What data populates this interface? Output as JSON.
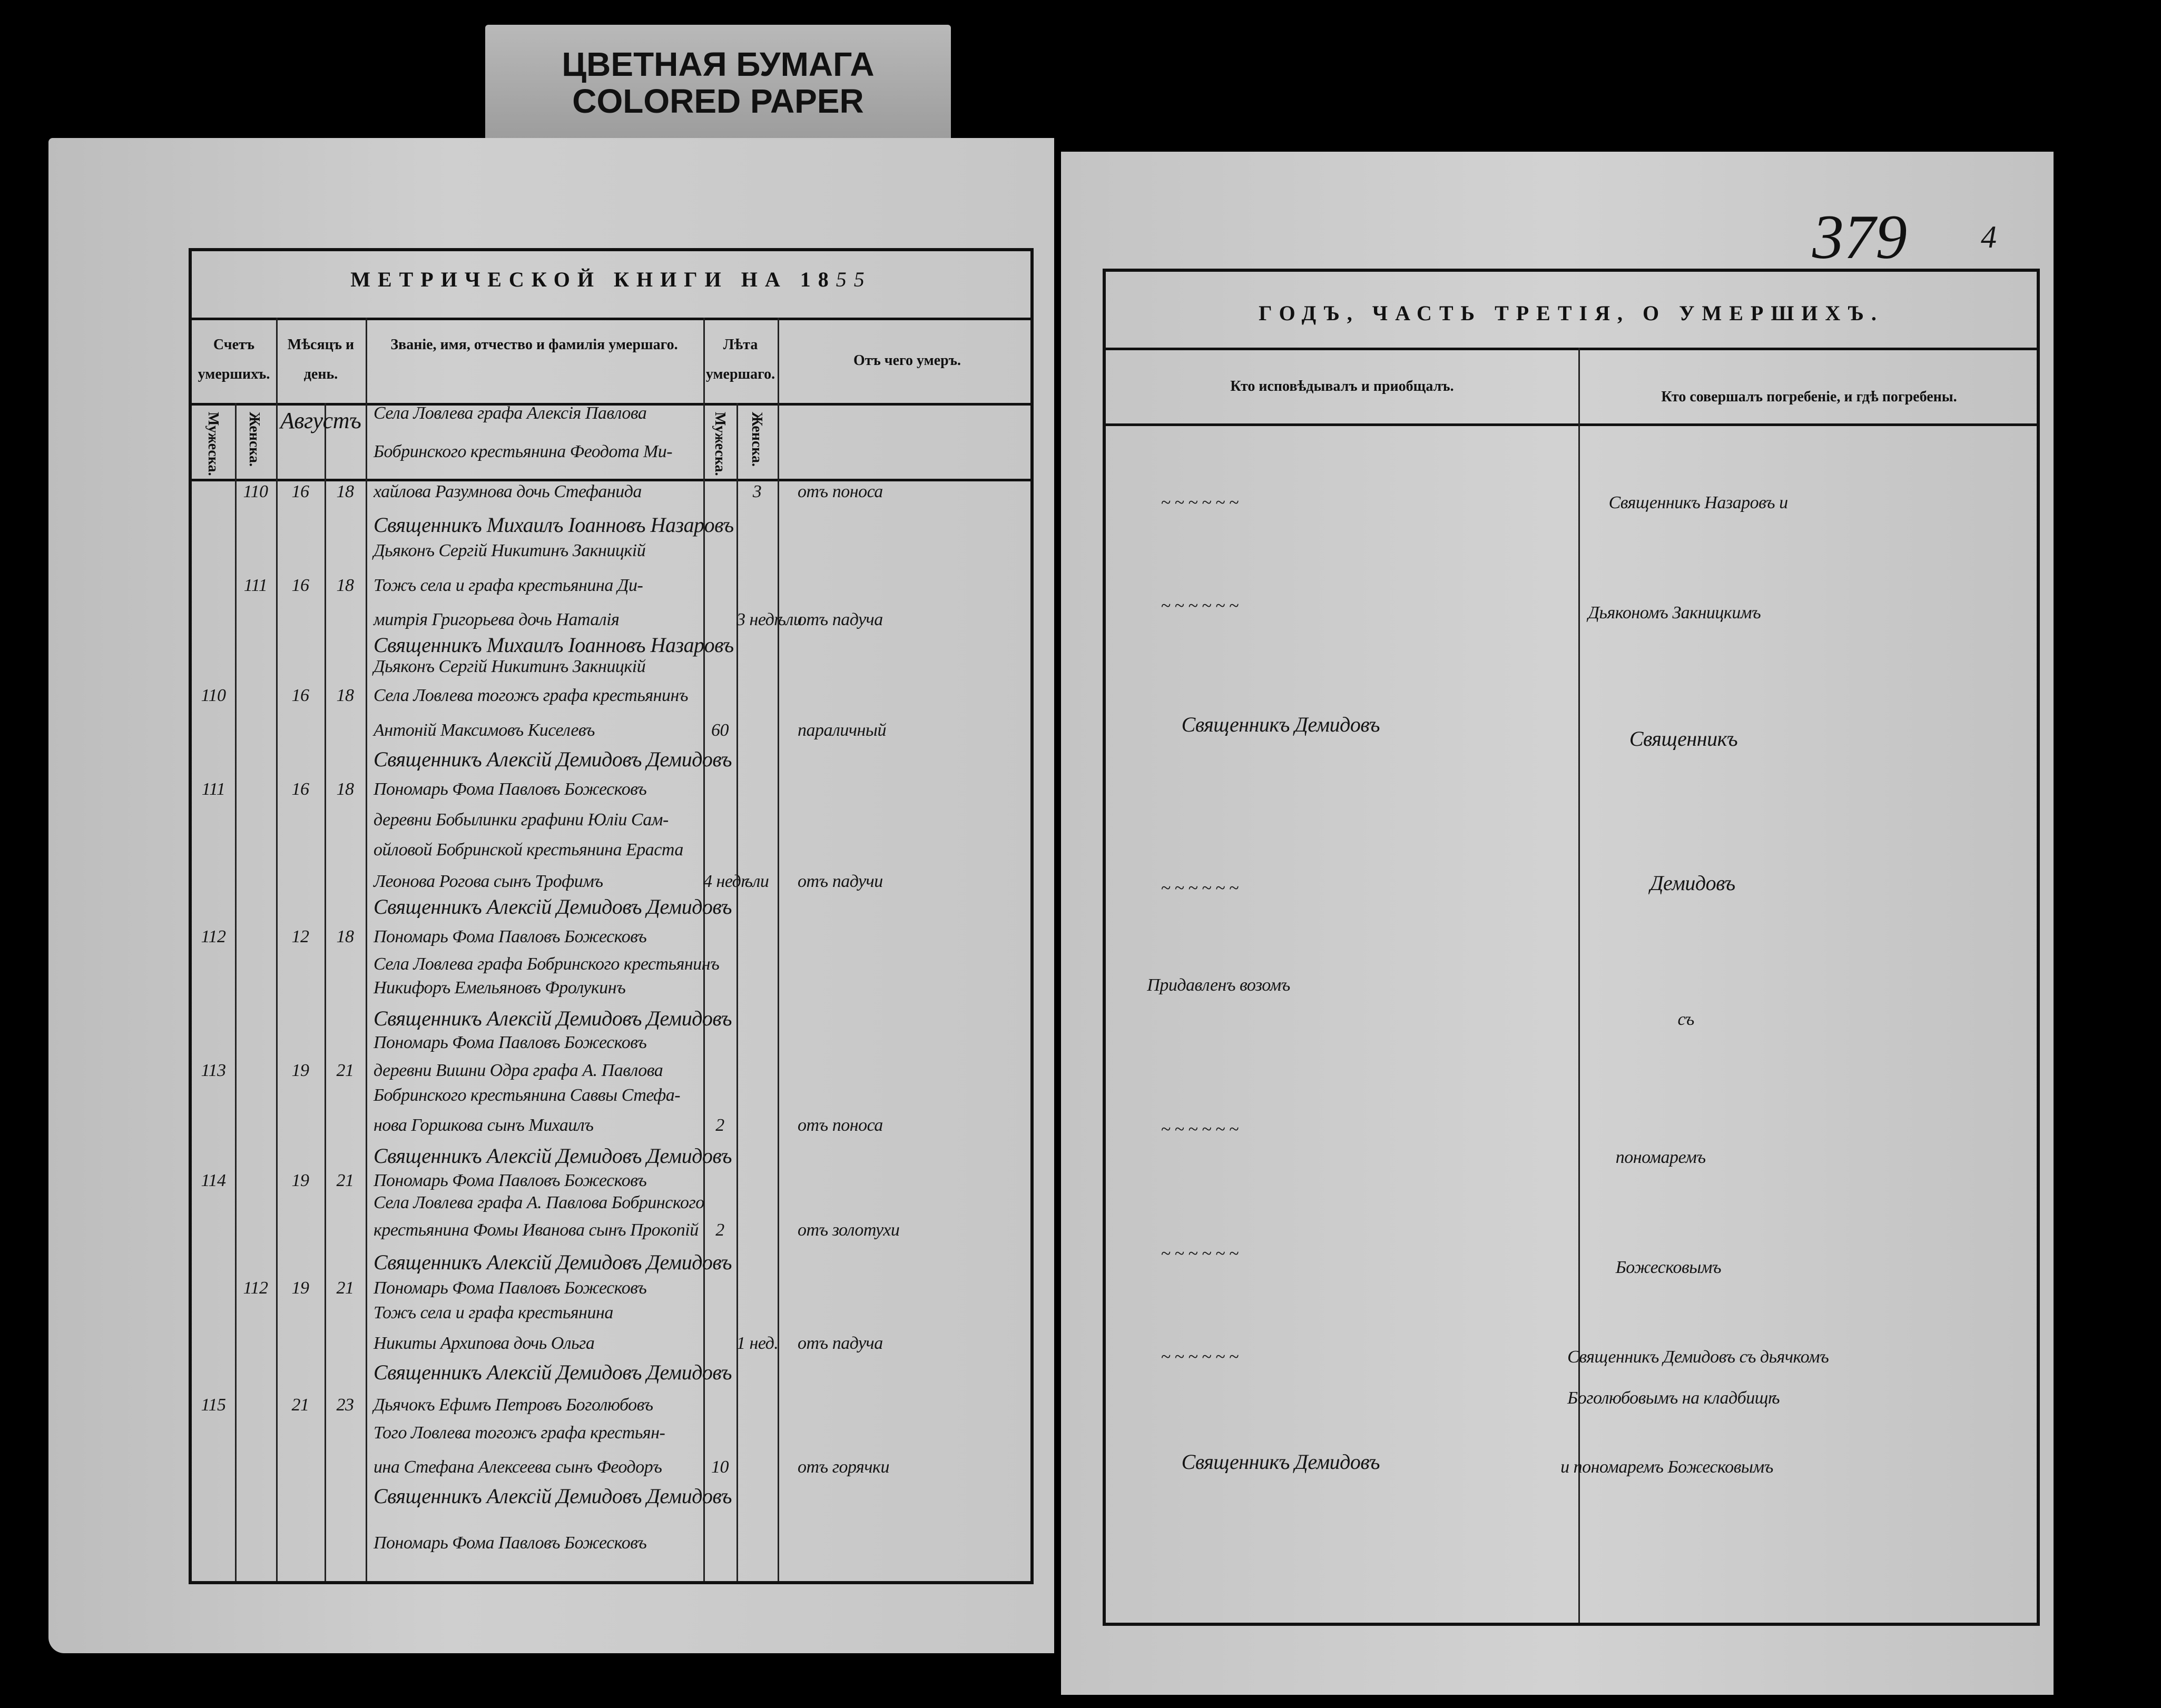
{
  "sticker": {
    "line1": "ЦВЕТНАЯ БУМАГА",
    "line2": "COLORED PAPER"
  },
  "left_page": {
    "title_printed": "МЕТРИЧЕСКОЙ КНИГИ НА 18",
    "title_year_hand": "55",
    "headers": {
      "count": "Счетъ умершихъ.",
      "month_day": "Мѣсяцъ и день.",
      "name": "Званіе, имя, отчество и фамилія умершаго.",
      "age": "Лѣта умершаго.",
      "cause": "Отъ чего умеръ.",
      "male": "Мужеска.",
      "female": "Женска."
    },
    "month": "Августъ",
    "lines": [
      {
        "text": "Села Ловлева графа Алексія Павлова"
      },
      {
        "text": "Бобринского крестьянина Феодота Ми-"
      },
      {
        "num_f": "110",
        "month": "16",
        "day": "18",
        "text": "хайлова Разумнова дочь Стефанида",
        "age_f": "3",
        "cause": "отъ поноса"
      },
      {
        "wide": "Священникъ Михаилъ        Іоанновъ Назаровъ"
      },
      {
        "text": "Дьяконъ Сергій Никитинъ Закницкій"
      },
      {
        "num_f": "111",
        "month": "16",
        "day": "18",
        "text": "Тожъ села и графа крестьянина Ди-"
      },
      {
        "text": "митрія Григорьева дочь Наталія",
        "age_f": "3 недѣли",
        "cause": "отъ падуча"
      },
      {
        "wide": "Священникъ Михаилъ        Іоанновъ Назаровъ"
      },
      {
        "text": "Дьяконъ Сергій Никитинъ Закницкій"
      },
      {
        "num_m": "110",
        "month": "16",
        "day": "18",
        "text": "Села Ловлева тогожъ графа крестьянинъ"
      },
      {
        "text": "Антоній Максимовъ Киселевъ",
        "age_m": "60",
        "cause": "параличный"
      },
      {
        "wide": "Священникъ Алексій Демидовъ Демидовъ"
      },
      {
        "num_m": "111",
        "month": "16",
        "day": "18",
        "text": "Пономарь Фома Павловъ Божесковъ"
      },
      {
        "text": "деревни Бобылинки графини Юліи Сам-"
      },
      {
        "text": "ойловой Бобринской крестьянина Ераста"
      },
      {
        "text": "Леонова Рогова сынъ Трофимъ",
        "age_m": "4 недѣли",
        "cause": "отъ падучи"
      },
      {
        "wide": "Священникъ Алексій Демидовъ Демидовъ"
      },
      {
        "num_m": "112",
        "month": "12",
        "day": "18",
        "text": "Пономарь Фома Павловъ Божесковъ"
      },
      {
        "text": "Села Ловлева графа Бобринского крестьянинъ"
      },
      {
        "text": "Никифоръ Емельяновъ Фролукинъ"
      },
      {
        "wide": "Священникъ Алексій Демидовъ Демидовъ"
      },
      {
        "text": "Пономарь Фома Павловъ Божесковъ"
      },
      {
        "num_m": "113",
        "month": "19",
        "day": "21",
        "text": "деревни Вишни Одра графа А. Павлова"
      },
      {
        "text": "Бобринского крестьянина Саввы Стефа-"
      },
      {
        "text": "нова Горшкова сынъ Михаилъ",
        "age_m": "2",
        "cause": "отъ поноса"
      },
      {
        "wide": "Священникъ Алексій Демидовъ Демидовъ"
      },
      {
        "num_m": "114",
        "month": "19",
        "day": "21",
        "text": "Пономарь Фома Павловъ Божесковъ"
      },
      {
        "text": "Села Ловлева графа А. Павлова Бобринского"
      },
      {
        "text": "крестьянина Фомы Иванова сынъ Прокопій",
        "age_m": "2",
        "cause": "отъ золотухи"
      },
      {
        "wide": "Священникъ Алексій Демидовъ Демидовъ"
      },
      {
        "num_f": "112",
        "month": "19",
        "day": "21",
        "text": "Пономарь Фома Павловъ Божесковъ"
      },
      {
        "text": "Тожъ села и графа крестьянина"
      },
      {
        "text": "Никиты Архипова дочь Ольга",
        "age_f": "1 нед.",
        "cause": "отъ падуча"
      },
      {
        "wide": "Священникъ Алексій Демидовъ Демидовъ"
      },
      {
        "num_m": "115",
        "month": "21",
        "day": "23",
        "text": "Дьячокъ Ефимъ Петровъ Боголюбовъ"
      },
      {
        "text": "Того Ловлева тогожъ графа крестьян-"
      },
      {
        "text": "ина Стефана Алексеева сынъ Феодоръ",
        "age_m": "10",
        "cause": "отъ горячки"
      },
      {
        "wide": "Священникъ Алексій Демидовъ Демидовъ"
      },
      {
        "text": "Пономарь Фома Павловъ Божесковъ"
      }
    ]
  },
  "right_page": {
    "page_number": "379",
    "page_mark": "4",
    "title": "ГОДЪ, ЧАСТЬ ТРЕТІЯ, О УМЕРШИХЪ.",
    "headers": {
      "confessor": "Кто исповѣдывалъ и приобщалъ.",
      "burial": "Кто совершалъ погребеніе, и гдѣ погребены."
    },
    "entries": {
      "c1": "~   ~   ~   ~   ~   ~",
      "b1": "Священникъ Назаровъ  и",
      "c2": "~   ~   ~   ~   ~   ~",
      "b2": "Дьякономъ Закницкимъ",
      "c3": "Священникъ Демидовъ",
      "b3": "Священникъ",
      "c4": "~   ~   ~   ~   ~   ~",
      "b4": "Демидовъ",
      "c5": "Придавленъ возомъ",
      "b5": "съ",
      "c6": "~   ~   ~   ~   ~   ~",
      "b6": "пономаремъ",
      "c7": "~   ~   ~   ~   ~   ~",
      "b7": "Божесковымъ",
      "c8": "~   ~   ~   ~   ~   ~",
      "b8": "Священникъ Демидовъ съ дьячкомъ",
      "b9": "Боголюбовымъ на кладбищѣ",
      "c10": "Священникъ    Демидовъ",
      "b10": "и пономаремъ Божесковымъ"
    }
  }
}
